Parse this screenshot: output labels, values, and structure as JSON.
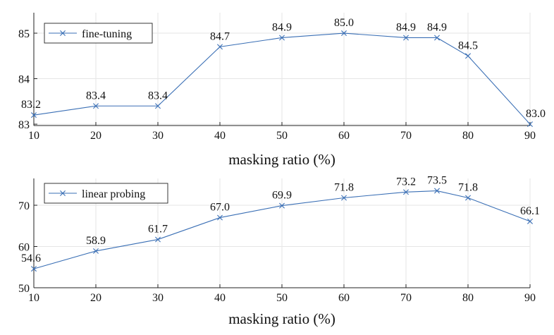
{
  "colors": {
    "series": "#3a6fb5",
    "axis": "#222222",
    "grid": "#e6e6e6",
    "background": "#ffffff"
  },
  "chart_data": [
    {
      "type": "line",
      "title": "",
      "xlabel": "masking ratio (%)",
      "ylabel": "",
      "x": [
        10,
        20,
        30,
        40,
        50,
        60,
        70,
        75,
        80,
        90
      ],
      "xticks": [
        10,
        20,
        30,
        40,
        50,
        60,
        70,
        80,
        90
      ],
      "yticks": [
        83,
        84,
        85
      ],
      "xlim": [
        10,
        90
      ],
      "ylim": [
        82.97,
        85.45
      ],
      "grid": true,
      "legend_position": "top-left",
      "series": [
        {
          "name": "fine-tuning",
          "marker": "x",
          "values": [
            83.2,
            83.4,
            83.4,
            84.7,
            84.9,
            85.0,
            84.9,
            84.9,
            84.5,
            83.0
          ],
          "labels": [
            "83.2",
            "83.4",
            "83.4",
            "84.7",
            "84.9",
            "85.0",
            "84.9",
            "84.9",
            "84.5",
            "83.0"
          ]
        }
      ]
    },
    {
      "type": "line",
      "title": "",
      "xlabel": "masking ratio (%)",
      "ylabel": "",
      "x": [
        10,
        20,
        30,
        40,
        50,
        60,
        70,
        75,
        80,
        90
      ],
      "xticks": [
        10,
        20,
        30,
        40,
        50,
        60,
        70,
        80,
        90
      ],
      "yticks": [
        50,
        60,
        70
      ],
      "xlim": [
        10,
        90
      ],
      "ylim": [
        50,
        76.5
      ],
      "grid": true,
      "legend_position": "top-left",
      "series": [
        {
          "name": "linear probing",
          "marker": "x",
          "values": [
            54.6,
            58.9,
            61.7,
            67.0,
            69.9,
            71.8,
            73.2,
            73.5,
            71.8,
            66.1
          ],
          "labels": [
            "54.6",
            "58.9",
            "61.7",
            "67.0",
            "69.9",
            "71.8",
            "73.2",
            "73.5",
            "71.8",
            "66.1"
          ]
        }
      ]
    }
  ]
}
